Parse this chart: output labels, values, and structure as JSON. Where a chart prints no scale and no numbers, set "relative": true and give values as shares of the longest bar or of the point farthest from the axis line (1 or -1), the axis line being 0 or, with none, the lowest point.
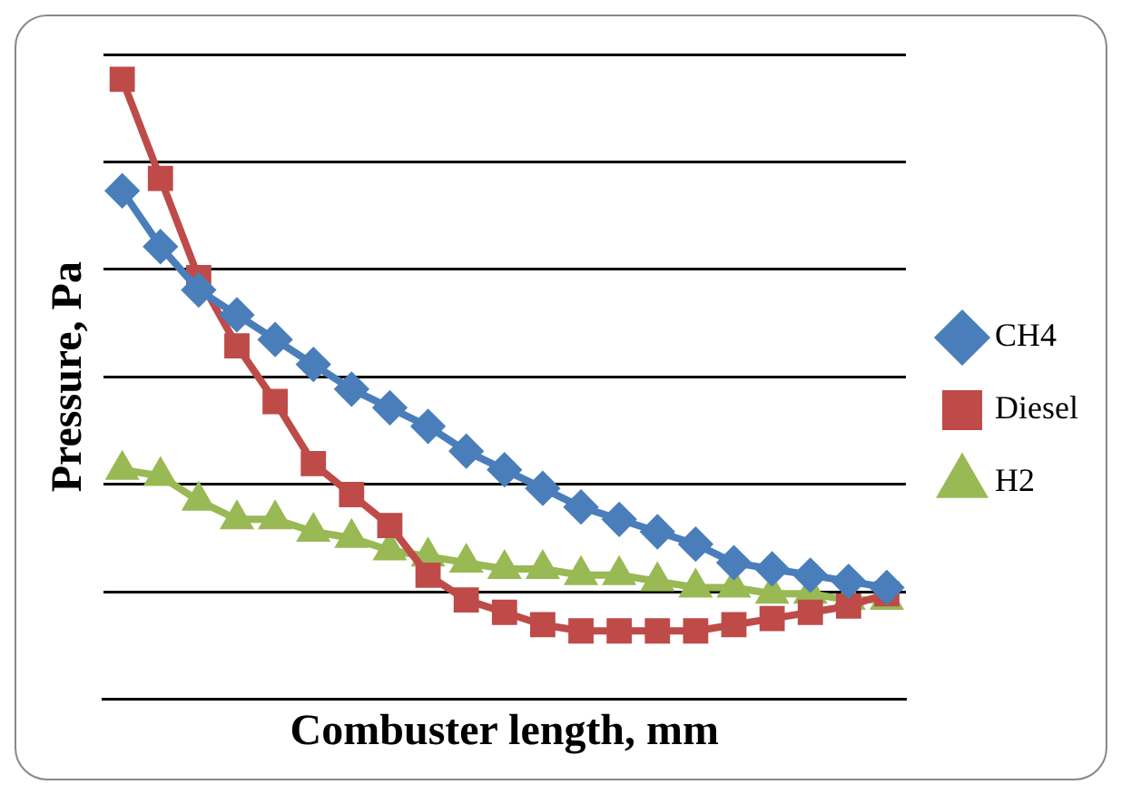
{
  "chart_data": {
    "type": "line",
    "relative": true,
    "xlabel": "Combuster length, mm",
    "ylabel": "Pressure, Pa",
    "grid": "y",
    "legend": "right",
    "categories": [
      null,
      null,
      null,
      null,
      null,
      null,
      null,
      null,
      null,
      null,
      null,
      null,
      null,
      null,
      null,
      null,
      null,
      null,
      null,
      null,
      null
    ],
    "series": [
      {
        "name": "CH4",
        "color": "#4a7ebb",
        "marker": "diamond",
        "values": [
          0.82,
          0.73,
          0.66,
          0.62,
          0.58,
          0.54,
          0.5,
          0.47,
          0.44,
          0.4,
          0.37,
          0.34,
          0.31,
          0.29,
          0.27,
          0.25,
          0.22,
          0.21,
          0.2,
          0.19,
          0.18
        ]
      },
      {
        "name": "Diesel",
        "color": "#be4b48",
        "marker": "square",
        "values": [
          1.0,
          0.84,
          0.68,
          0.57,
          0.48,
          0.38,
          0.33,
          0.28,
          0.2,
          0.16,
          0.14,
          0.12,
          0.11,
          0.11,
          0.11,
          0.11,
          0.12,
          0.13,
          0.14,
          0.15,
          0.17
        ]
      },
      {
        "name": "H2",
        "color": "#98b954",
        "marker": "triangle",
        "values": [
          0.37,
          0.36,
          0.32,
          0.29,
          0.29,
          0.27,
          0.26,
          0.24,
          0.23,
          0.22,
          0.21,
          0.21,
          0.2,
          0.2,
          0.19,
          0.18,
          0.18,
          0.17,
          0.17,
          0.16,
          0.16
        ]
      }
    ]
  }
}
